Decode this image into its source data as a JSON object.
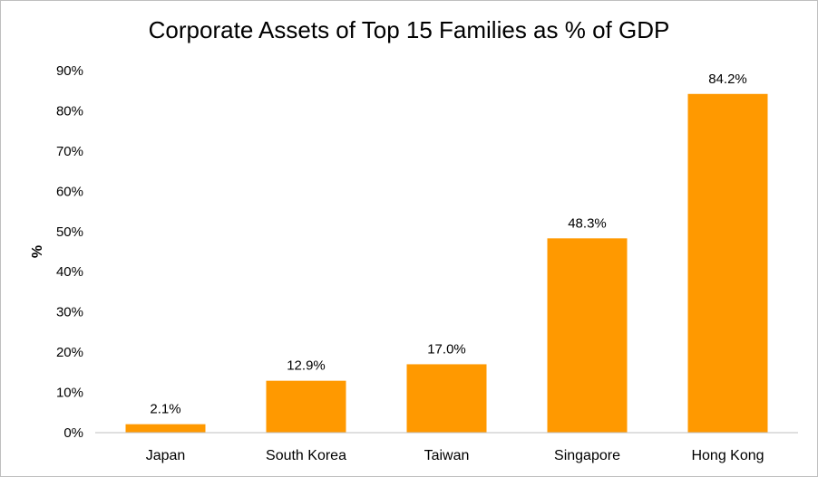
{
  "chart_data": {
    "type": "bar",
    "title": "Corporate Assets  of Top 15 Families as % of GDP",
    "xlabel": "",
    "ylabel": "%",
    "categories": [
      "Japan",
      "South Korea",
      "Taiwan",
      "Singapore",
      "Hong Kong"
    ],
    "values": [
      2.1,
      12.9,
      17.0,
      48.3,
      84.2
    ],
    "data_labels": [
      "2.1%",
      "12.9%",
      "17.0%",
      "48.3%",
      "84.2%"
    ],
    "ylim": [
      0,
      90
    ],
    "yticks": [
      0,
      10,
      20,
      30,
      40,
      50,
      60,
      70,
      80,
      90
    ],
    "ytick_labels": [
      "0%",
      "10%",
      "20%",
      "30%",
      "40%",
      "50%",
      "60%",
      "70%",
      "80%",
      "90%"
    ],
    "grid": false,
    "legend": "none",
    "bar_color": "#FF9900",
    "axis_color": "#bfbfbf"
  }
}
